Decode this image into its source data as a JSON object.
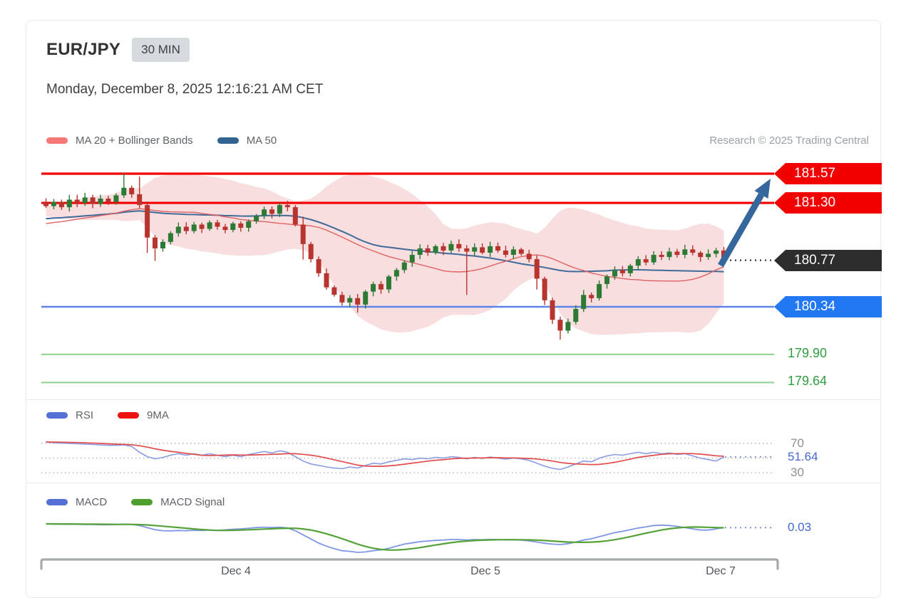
{
  "header": {
    "symbol": "EUR/JPY",
    "timeframe": "30 MIN",
    "datetime": "Monday, December 8, 2025 12:16:21 AM CET"
  },
  "attribution": "Research © 2025 Trading Central",
  "main_legend": [
    {
      "label": "MA 20 + Bollinger Bands",
      "color": "#f87777"
    },
    {
      "label": "MA 50",
      "color": "#31648f"
    }
  ],
  "rsi_legend": [
    {
      "label": "RSI",
      "color": "#5470d6"
    },
    {
      "label": "9MA",
      "color": "#ee1111"
    }
  ],
  "macd_legend": [
    {
      "label": "MACD",
      "color": "#5470d6"
    },
    {
      "label": "MACD Signal",
      "color": "#4f9f2f"
    }
  ],
  "labels": {
    "r1": "181.57",
    "r2": "181.30",
    "last": "180.77",
    "s1": "180.34",
    "t1": "179.90",
    "t2": "179.64",
    "rsi_upper": "70",
    "rsi_value": "51.64",
    "rsi_lower": "30",
    "macd_value": "0.03"
  },
  "colors": {
    "resistance_tag": "#f20000",
    "support_tag": "#2277f2",
    "last_tag": "#2d2d2d",
    "resistance_line": "#f20000",
    "support_line": "#5c85e8",
    "target_line": "#8fd08f",
    "candle_up": "#2c7a36",
    "candle_down": "#b8342f",
    "ma20_line": "#e06262",
    "ma50_line": "#3f6a9a",
    "band_fill": "rgba(236,160,160,0.35)",
    "rsi_line": "#8a9be4",
    "rsi_ma_line": "#e14b4b",
    "macd_line": "#7f96e4",
    "macd_signal_line": "#55a238",
    "arrow": "#35679d",
    "bracket": "#a6aaaf"
  },
  "chart_data": {
    "type": "candlestick-multi-panel",
    "price_panel": {
      "type": "candlestick",
      "title": "EUR/JPY 30 MIN with MA 20 + Bollinger Bands and MA 50",
      "resistance": [
        181.57,
        181.3
      ],
      "support": [
        180.34
      ],
      "targets": [
        179.9,
        179.64
      ],
      "last_price": 180.77,
      "ylim": [
        180.0,
        181.7
      ],
      "x_labels": [
        "Dec 4",
        "Dec 5",
        "Dec 7"
      ],
      "closes": [
        181.27,
        181.31,
        181.26,
        181.33,
        181.3,
        181.35,
        181.29,
        181.34,
        181.31,
        181.37,
        181.44,
        181.38,
        181.28,
        180.98,
        180.88,
        180.94,
        181.02,
        181.08,
        181.04,
        181.1,
        181.06,
        181.12,
        181.08,
        181.05,
        181.11,
        181.07,
        181.13,
        181.18,
        181.24,
        181.2,
        181.28,
        181.26,
        181.1,
        180.92,
        180.78,
        180.65,
        180.52,
        180.45,
        180.38,
        180.42,
        180.36,
        180.48,
        180.55,
        180.5,
        180.62,
        180.68,
        180.75,
        180.82,
        180.88,
        180.84,
        180.9,
        180.86,
        180.92,
        180.88,
        180.85,
        180.89,
        180.84,
        180.9,
        180.86,
        180.82,
        180.87,
        180.83,
        180.78,
        180.6,
        180.4,
        180.22,
        180.12,
        180.2,
        180.32,
        180.45,
        180.42,
        180.55,
        180.62,
        180.68,
        180.65,
        180.72,
        180.78,
        180.75,
        180.82,
        180.8,
        180.85,
        180.82,
        180.87,
        180.84,
        180.8,
        180.83,
        180.86,
        180.77
      ],
      "wick_hi": {
        "10": 0.1,
        "12": 0.12,
        "33": 0.05
      },
      "wick_lo": {
        "13": 0.1,
        "14": 0.08,
        "33": 0.1,
        "40": 0.03,
        "54": 0.38,
        "63": 0.08,
        "66": 0.05
      }
    },
    "rsi_panel": {
      "type": "line",
      "gridlines": [
        70,
        50,
        30
      ],
      "last_value": 51.64,
      "series_names": [
        "RSI",
        "9MA"
      ],
      "rsi": [
        72,
        71,
        70.5,
        70,
        69.5,
        69,
        68.5,
        68,
        67.5,
        67.5,
        68,
        66,
        58,
        52,
        49,
        51,
        54,
        56,
        54,
        56,
        54,
        56,
        54,
        52,
        54,
        52,
        55,
        57,
        59,
        57,
        60,
        58,
        52,
        46,
        42,
        40,
        38,
        36.5,
        35.5,
        38,
        36.5,
        40,
        43,
        42,
        45,
        47,
        49,
        48,
        50,
        49,
        51,
        50,
        52,
        51,
        49,
        51,
        49.5,
        51.5,
        50,
        48.5,
        50,
        49,
        47,
        43,
        39,
        36,
        34.5,
        38,
        42,
        46,
        45,
        50,
        53,
        55,
        54,
        56,
        58,
        56,
        58,
        56,
        57,
        55,
        56,
        53,
        50,
        48,
        46,
        51.6
      ]
    },
    "macd_panel": {
      "type": "line",
      "last_value": 0.03,
      "series_names": [
        "MACD",
        "MACD Signal"
      ],
      "macd": [
        0.048,
        0.047,
        0.047,
        0.046,
        0.046,
        0.045,
        0.045,
        0.044,
        0.044,
        0.045,
        0.047,
        0.046,
        0.04,
        0.03,
        0.02,
        0.015,
        0.014,
        0.016,
        0.015,
        0.017,
        0.016,
        0.018,
        0.017,
        0.019,
        0.022,
        0.024,
        0.027,
        0.03,
        0.032,
        0.03,
        0.032,
        0.028,
        0.015,
        -0.005,
        -0.025,
        -0.045,
        -0.06,
        -0.072,
        -0.082,
        -0.085,
        -0.09,
        -0.088,
        -0.082,
        -0.078,
        -0.07,
        -0.06,
        -0.05,
        -0.044,
        -0.038,
        -0.035,
        -0.032,
        -0.03,
        -0.028,
        -0.028,
        -0.03,
        -0.028,
        -0.029,
        -0.027,
        -0.028,
        -0.03,
        -0.029,
        -0.031,
        -0.034,
        -0.04,
        -0.046,
        -0.05,
        -0.052,
        -0.048,
        -0.04,
        -0.03,
        -0.024,
        -0.014,
        -0.004,
        0.006,
        0.012,
        0.02,
        0.028,
        0.034,
        0.04,
        0.042,
        0.04,
        0.036,
        0.03,
        0.024,
        0.018,
        0.018,
        0.024,
        0.03
      ]
    }
  }
}
